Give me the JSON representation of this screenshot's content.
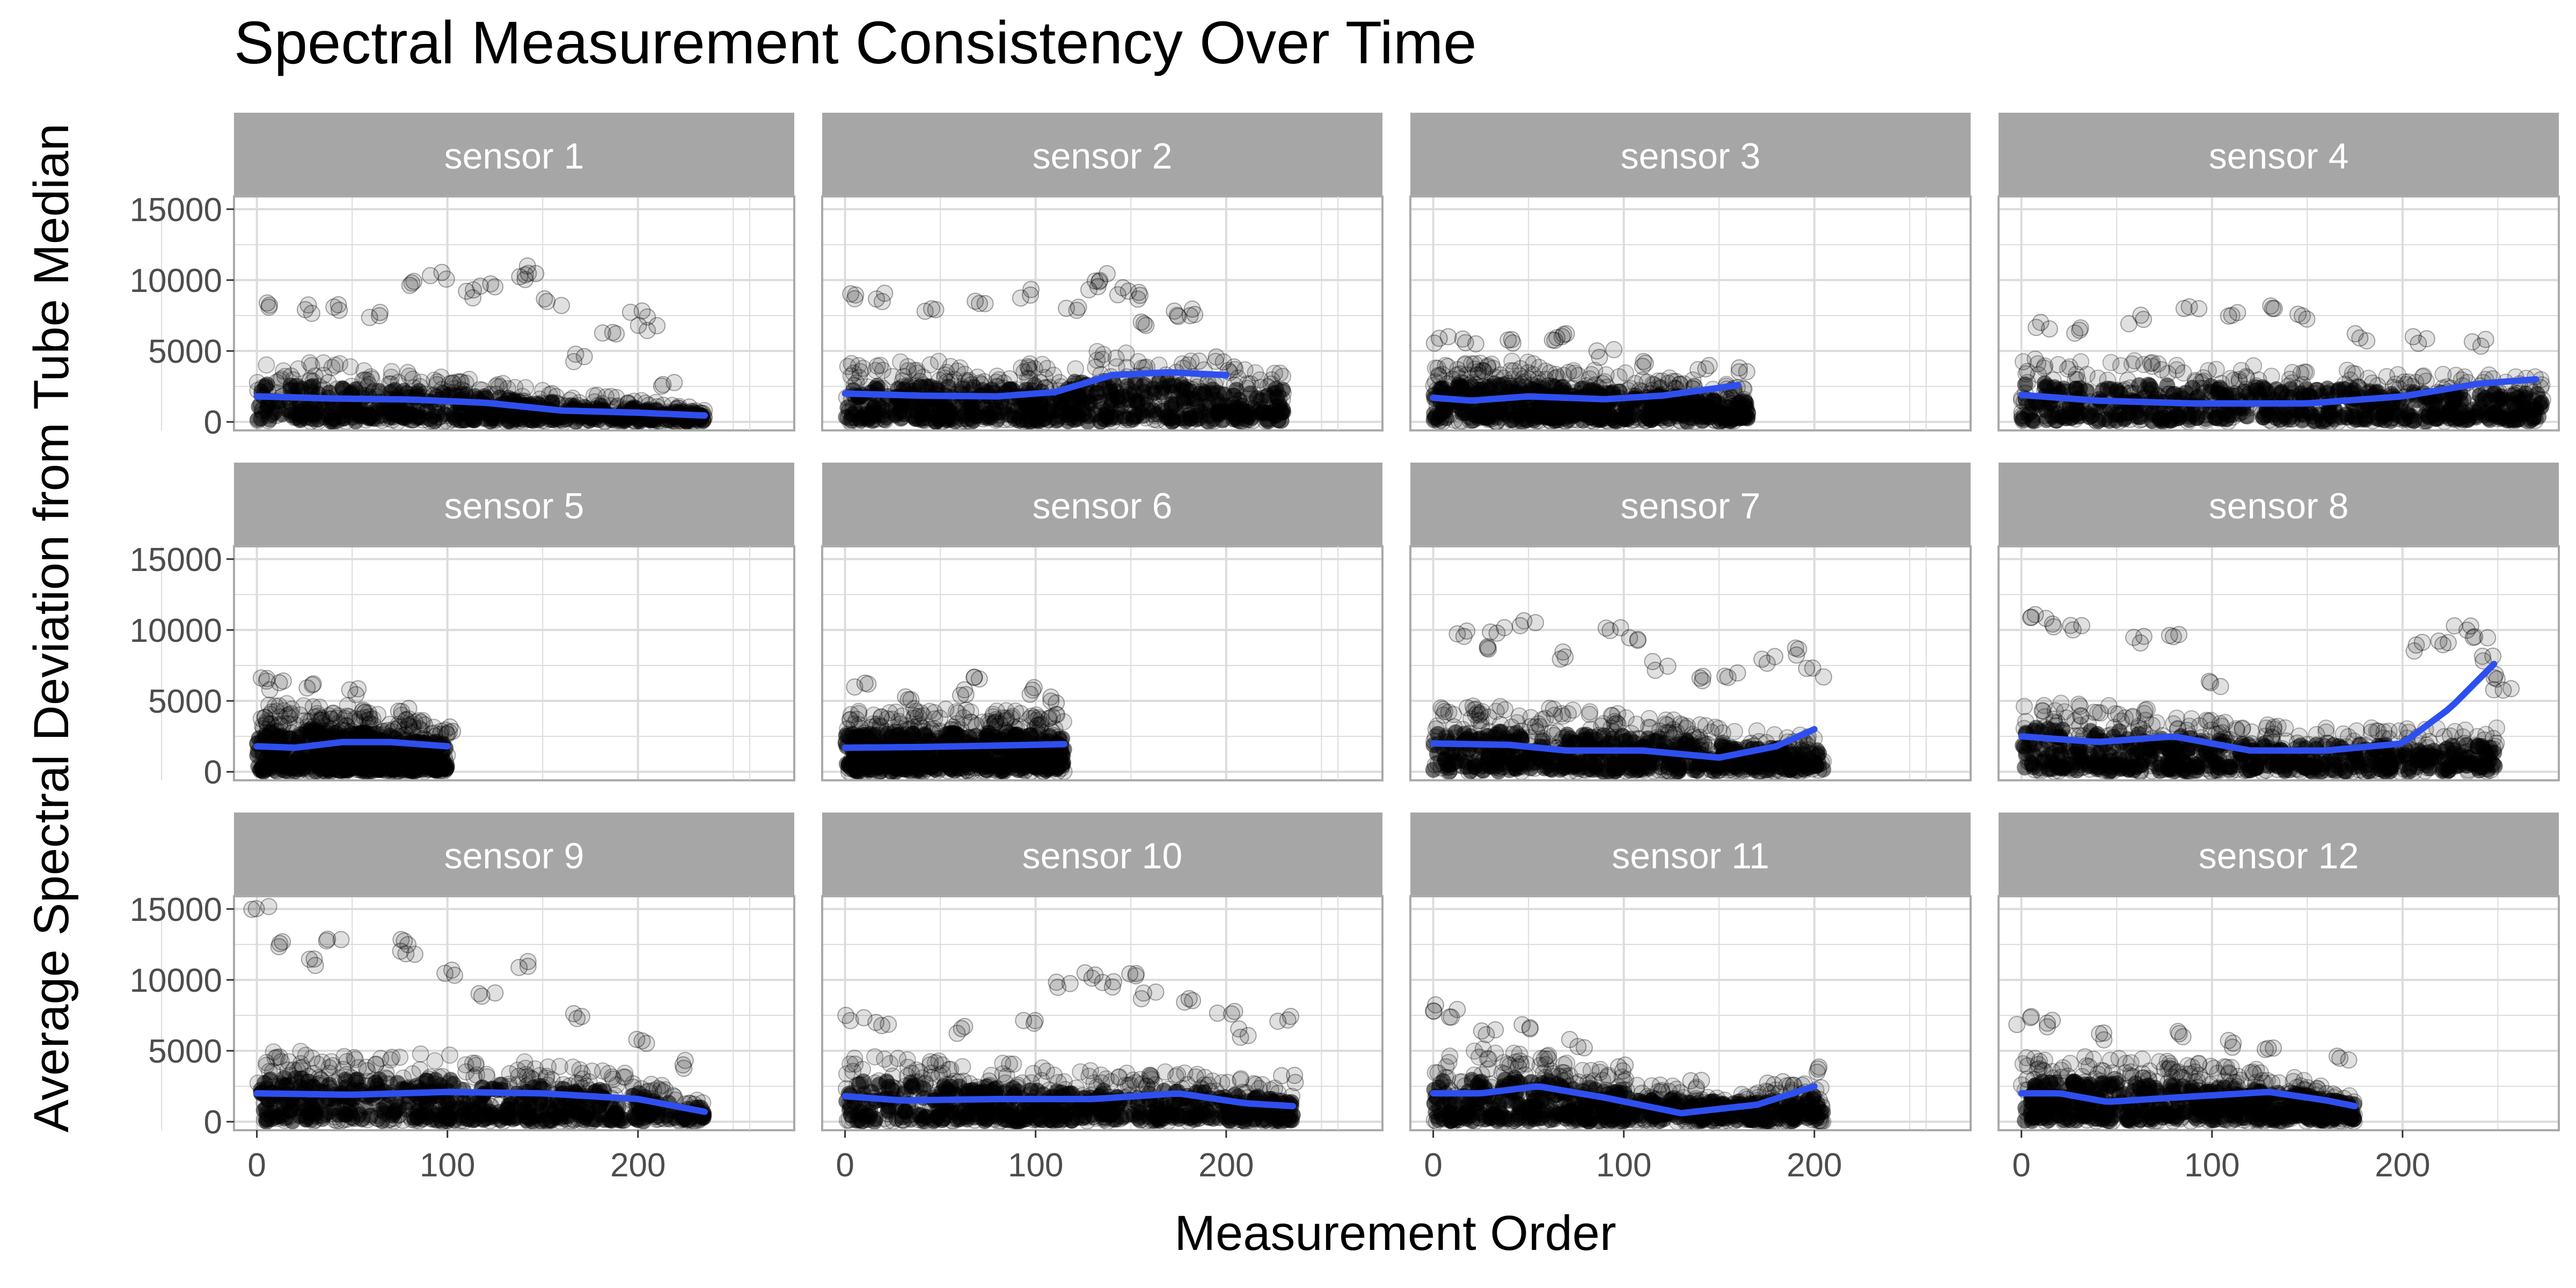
{
  "title": "Spectral Measurement Consistency Over Time",
  "colors": {
    "strip_bg": "#a6a6a6",
    "strip_text": "#ffffff",
    "grid": "#dcdcdc",
    "panel_border": "#aaaaaa",
    "points": "#000000",
    "smooth_line": "#2e4ff0",
    "tick_text": "#4d4d4d"
  },
  "chart_data": {
    "type": "scatter",
    "title": "Spectral Measurement Consistency Over Time",
    "xlabel": "Measurement Order",
    "ylabel": "Average Spectral Deviation from Tube Median",
    "xlim": [
      -12,
      282
    ],
    "ylim": [
      -600,
      15900
    ],
    "x_ticks": [
      0,
      100,
      200
    ],
    "y_ticks": [
      0,
      5000,
      10000,
      15000
    ],
    "grid": true,
    "point_alpha": 0.12,
    "facets": [
      {
        "label": "sensor 1",
        "x_max": 235,
        "smooth": [
          [
            0,
            1800
          ],
          [
            40,
            1650
          ],
          [
            80,
            1580
          ],
          [
            120,
            1350
          ],
          [
            160,
            800
          ],
          [
            200,
            650
          ],
          [
            235,
            450
          ]
        ],
        "dense_top": [
          [
            0,
            4400
          ],
          [
            40,
            4200
          ],
          [
            80,
            3600
          ],
          [
            120,
            3000
          ],
          [
            160,
            2200
          ],
          [
            200,
            1600
          ],
          [
            235,
            900
          ]
        ],
        "outliers": [
          [
            10,
            8300
          ],
          [
            25,
            7900
          ],
          [
            40,
            8100
          ],
          [
            60,
            7600
          ],
          [
            85,
            9600
          ],
          [
            95,
            10200
          ],
          [
            110,
            9000
          ],
          [
            120,
            9500
          ],
          [
            140,
            10300
          ],
          [
            145,
            10700
          ],
          [
            155,
            8500
          ],
          [
            170,
            4500
          ],
          [
            185,
            6500
          ],
          [
            200,
            7500
          ],
          [
            205,
            6600
          ],
          [
            215,
            2800
          ],
          [
            230,
            700
          ]
        ]
      },
      {
        "label": "sensor 2",
        "x_max": 230,
        "smooth": [
          [
            0,
            2000
          ],
          [
            40,
            1850
          ],
          [
            80,
            1800
          ],
          [
            110,
            2100
          ],
          [
            140,
            3300
          ],
          [
            170,
            3500
          ],
          [
            200,
            3300
          ]
        ],
        "dense_top": [
          [
            0,
            4200
          ],
          [
            40,
            4400
          ],
          [
            80,
            4000
          ],
          [
            110,
            4300
          ],
          [
            140,
            5200
          ],
          [
            170,
            4600
          ],
          [
            200,
            3800
          ]
        ],
        "outliers": [
          [
            5,
            9000
          ],
          [
            20,
            8800
          ],
          [
            45,
            7900
          ],
          [
            70,
            8500
          ],
          [
            95,
            9000
          ],
          [
            120,
            8200
          ],
          [
            130,
            9600
          ],
          [
            135,
            10200
          ],
          [
            145,
            9200
          ],
          [
            150,
            8800
          ],
          [
            160,
            7000
          ],
          [
            170,
            7600
          ],
          [
            180,
            7800
          ],
          [
            190,
            4500
          ],
          [
            200,
            3900
          ]
        ]
      },
      {
        "label": "sensor 3",
        "x_max": 165,
        "smooth": [
          [
            0,
            1700
          ],
          [
            20,
            1500
          ],
          [
            50,
            1800
          ],
          [
            90,
            1600
          ],
          [
            120,
            1850
          ],
          [
            150,
            2400
          ],
          [
            160,
            2600
          ]
        ],
        "dense_top": [
          [
            0,
            4200
          ],
          [
            30,
            4400
          ],
          [
            60,
            4200
          ],
          [
            90,
            3600
          ],
          [
            120,
            3200
          ],
          [
            150,
            2800
          ],
          [
            160,
            2500
          ]
        ],
        "outliers": [
          [
            5,
            5800
          ],
          [
            20,
            5600
          ],
          [
            40,
            5500
          ],
          [
            60,
            5900
          ],
          [
            70,
            6200
          ],
          [
            90,
            4800
          ],
          [
            110,
            4200
          ],
          [
            140,
            3800
          ],
          [
            160,
            3500
          ]
        ]
      },
      {
        "label": "sensor 4",
        "x_max": 275,
        "smooth": [
          [
            0,
            1900
          ],
          [
            40,
            1500
          ],
          [
            90,
            1300
          ],
          [
            150,
            1300
          ],
          [
            200,
            1800
          ],
          [
            240,
            2700
          ],
          [
            270,
            3000
          ]
        ],
        "dense_top": [
          [
            0,
            4400
          ],
          [
            40,
            4600
          ],
          [
            80,
            4200
          ],
          [
            120,
            4000
          ],
          [
            160,
            3800
          ],
          [
            200,
            3600
          ],
          [
            240,
            3400
          ],
          [
            270,
            3200
          ]
        ],
        "outliers": [
          [
            10,
            6800
          ],
          [
            30,
            6500
          ],
          [
            60,
            7200
          ],
          [
            90,
            8300
          ],
          [
            110,
            7700
          ],
          [
            130,
            8100
          ],
          [
            150,
            7300
          ],
          [
            180,
            6000
          ],
          [
            210,
            5800
          ],
          [
            240,
            5500
          ],
          [
            260,
            2000
          ]
        ]
      },
      {
        "label": "sensor 5",
        "x_max": 100,
        "smooth": [
          [
            0,
            1800
          ],
          [
            20,
            1700
          ],
          [
            45,
            2100
          ],
          [
            70,
            2100
          ],
          [
            100,
            1800
          ]
        ],
        "dense_top": [
          [
            0,
            4700
          ],
          [
            25,
            4900
          ],
          [
            50,
            4700
          ],
          [
            75,
            4100
          ],
          [
            100,
            3200
          ]
        ],
        "outliers": [
          [
            2,
            6300
          ],
          [
            10,
            6100
          ],
          [
            30,
            5900
          ],
          [
            50,
            5600
          ],
          [
            75,
            4200
          ],
          [
            100,
            3100
          ]
        ]
      },
      {
        "label": "sensor 6",
        "x_max": 115,
        "smooth": [
          [
            0,
            1700
          ],
          [
            40,
            1750
          ],
          [
            80,
            1850
          ],
          [
            115,
            1950
          ]
        ],
        "dense_top": [
          [
            0,
            4300
          ],
          [
            40,
            4500
          ],
          [
            80,
            4400
          ],
          [
            115,
            4000
          ]
        ],
        "outliers": [
          [
            10,
            6000
          ],
          [
            30,
            5400
          ],
          [
            60,
            5500
          ],
          [
            70,
            6800
          ],
          [
            95,
            5600
          ],
          [
            110,
            5200
          ]
        ]
      },
      {
        "label": "sensor 7",
        "x_max": 205,
        "smooth": [
          [
            0,
            2000
          ],
          [
            40,
            1900
          ],
          [
            70,
            1500
          ],
          [
            110,
            1500
          ],
          [
            150,
            1000
          ],
          [
            180,
            1800
          ],
          [
            200,
            3000
          ]
        ],
        "dense_top": [
          [
            0,
            4700
          ],
          [
            40,
            4600
          ],
          [
            80,
            4400
          ],
          [
            120,
            3800
          ],
          [
            160,
            3000
          ],
          [
            200,
            2600
          ]
        ],
        "outliers": [
          [
            15,
            9800
          ],
          [
            25,
            8900
          ],
          [
            35,
            10100
          ],
          [
            50,
            10600
          ],
          [
            70,
            8200
          ],
          [
            95,
            10200
          ],
          [
            105,
            9200
          ],
          [
            120,
            7500
          ],
          [
            140,
            6500
          ],
          [
            155,
            6700
          ],
          [
            175,
            8000
          ],
          [
            190,
            8400
          ],
          [
            200,
            7000
          ]
        ]
      },
      {
        "label": "sensor 8",
        "x_max": 250,
        "smooth": [
          [
            0,
            2500
          ],
          [
            40,
            2100
          ],
          [
            80,
            2500
          ],
          [
            120,
            1500
          ],
          [
            160,
            1500
          ],
          [
            200,
            2000
          ],
          [
            225,
            4500
          ],
          [
            248,
            7600
          ]
        ],
        "dense_top": [
          [
            0,
            5000
          ],
          [
            40,
            5000
          ],
          [
            80,
            4200
          ],
          [
            110,
            3500
          ],
          [
            150,
            3100
          ],
          [
            200,
            3100
          ]
        ],
        "outliers": [
          [
            5,
            11000
          ],
          [
            15,
            10500
          ],
          [
            30,
            10100
          ],
          [
            60,
            9200
          ],
          [
            80,
            9600
          ],
          [
            100,
            6200
          ],
          [
            210,
            8800
          ],
          [
            220,
            9200
          ],
          [
            232,
            10300
          ],
          [
            240,
            9600
          ],
          [
            245,
            8000
          ],
          [
            250,
            6800
          ],
          [
            252,
            5800
          ]
        ]
      },
      {
        "label": "sensor 9",
        "x_max": 235,
        "smooth": [
          [
            0,
            2000
          ],
          [
            50,
            1900
          ],
          [
            100,
            2100
          ],
          [
            150,
            2000
          ],
          [
            200,
            1600
          ],
          [
            235,
            700
          ]
        ],
        "dense_top": [
          [
            0,
            5000
          ],
          [
            50,
            5000
          ],
          [
            100,
            4800
          ],
          [
            150,
            4200
          ],
          [
            200,
            3300
          ],
          [
            235,
            1500
          ]
        ],
        "outliers": [
          [
            2,
            15200
          ],
          [
            15,
            12600
          ],
          [
            30,
            11200
          ],
          [
            40,
            12700
          ],
          [
            75,
            12500
          ],
          [
            80,
            11800
          ],
          [
            100,
            10500
          ],
          [
            120,
            9000
          ],
          [
            140,
            11200
          ],
          [
            170,
            7500
          ],
          [
            200,
            5600
          ],
          [
            220,
            4000
          ]
        ]
      },
      {
        "label": "sensor 10",
        "x_max": 235,
        "smooth": [
          [
            0,
            1800
          ],
          [
            30,
            1500
          ],
          [
            80,
            1600
          ],
          [
            130,
            1600
          ],
          [
            175,
            2000
          ],
          [
            210,
            1300
          ],
          [
            235,
            1100
          ]
        ],
        "dense_top": [
          [
            0,
            4600
          ],
          [
            40,
            4600
          ],
          [
            80,
            4300
          ],
          [
            120,
            3600
          ],
          [
            160,
            3600
          ],
          [
            200,
            3300
          ],
          [
            235,
            2300
          ]
        ],
        "outliers": [
          [
            5,
            7200
          ],
          [
            20,
            6700
          ],
          [
            60,
            6500
          ],
          [
            95,
            6800
          ],
          [
            115,
            9800
          ],
          [
            130,
            10400
          ],
          [
            140,
            9800
          ],
          [
            150,
            10600
          ],
          [
            160,
            9000
          ],
          [
            180,
            8400
          ],
          [
            200,
            7600
          ],
          [
            210,
            6300
          ],
          [
            230,
            7400
          ],
          [
            232,
            3000
          ]
        ]
      },
      {
        "label": "sensor 11",
        "x_max": 205,
        "smooth": [
          [
            0,
            2000
          ],
          [
            25,
            2000
          ],
          [
            55,
            2500
          ],
          [
            90,
            1700
          ],
          [
            130,
            600
          ],
          [
            170,
            1200
          ],
          [
            200,
            2500
          ]
        ],
        "dense_top": [
          [
            0,
            5000
          ],
          [
            30,
            5200
          ],
          [
            60,
            4700
          ],
          [
            90,
            3600
          ],
          [
            130,
            2500
          ],
          [
            170,
            2200
          ],
          [
            200,
            3000
          ]
        ],
        "outliers": [
          [
            2,
            8000
          ],
          [
            10,
            7600
          ],
          [
            30,
            6400
          ],
          [
            50,
            6600
          ],
          [
            75,
            5500
          ],
          [
            100,
            3800
          ],
          [
            140,
            2600
          ],
          [
            180,
            2800
          ],
          [
            200,
            3700
          ]
        ]
      },
      {
        "label": "sensor 12",
        "x_max": 175,
        "smooth": [
          [
            0,
            2000
          ],
          [
            20,
            2000
          ],
          [
            45,
            1400
          ],
          [
            80,
            1700
          ],
          [
            130,
            2100
          ],
          [
            160,
            1500
          ],
          [
            175,
            1100
          ]
        ],
        "dense_top": [
          [
            0,
            4600
          ],
          [
            40,
            4600
          ],
          [
            80,
            4300
          ],
          [
            120,
            3800
          ],
          [
            150,
            3000
          ],
          [
            175,
            2000
          ]
        ],
        "outliers": [
          [
            2,
            7100
          ],
          [
            15,
            6900
          ],
          [
            45,
            6100
          ],
          [
            85,
            6200
          ],
          [
            110,
            5600
          ],
          [
            130,
            4900
          ],
          [
            170,
            4500
          ]
        ]
      }
    ]
  }
}
